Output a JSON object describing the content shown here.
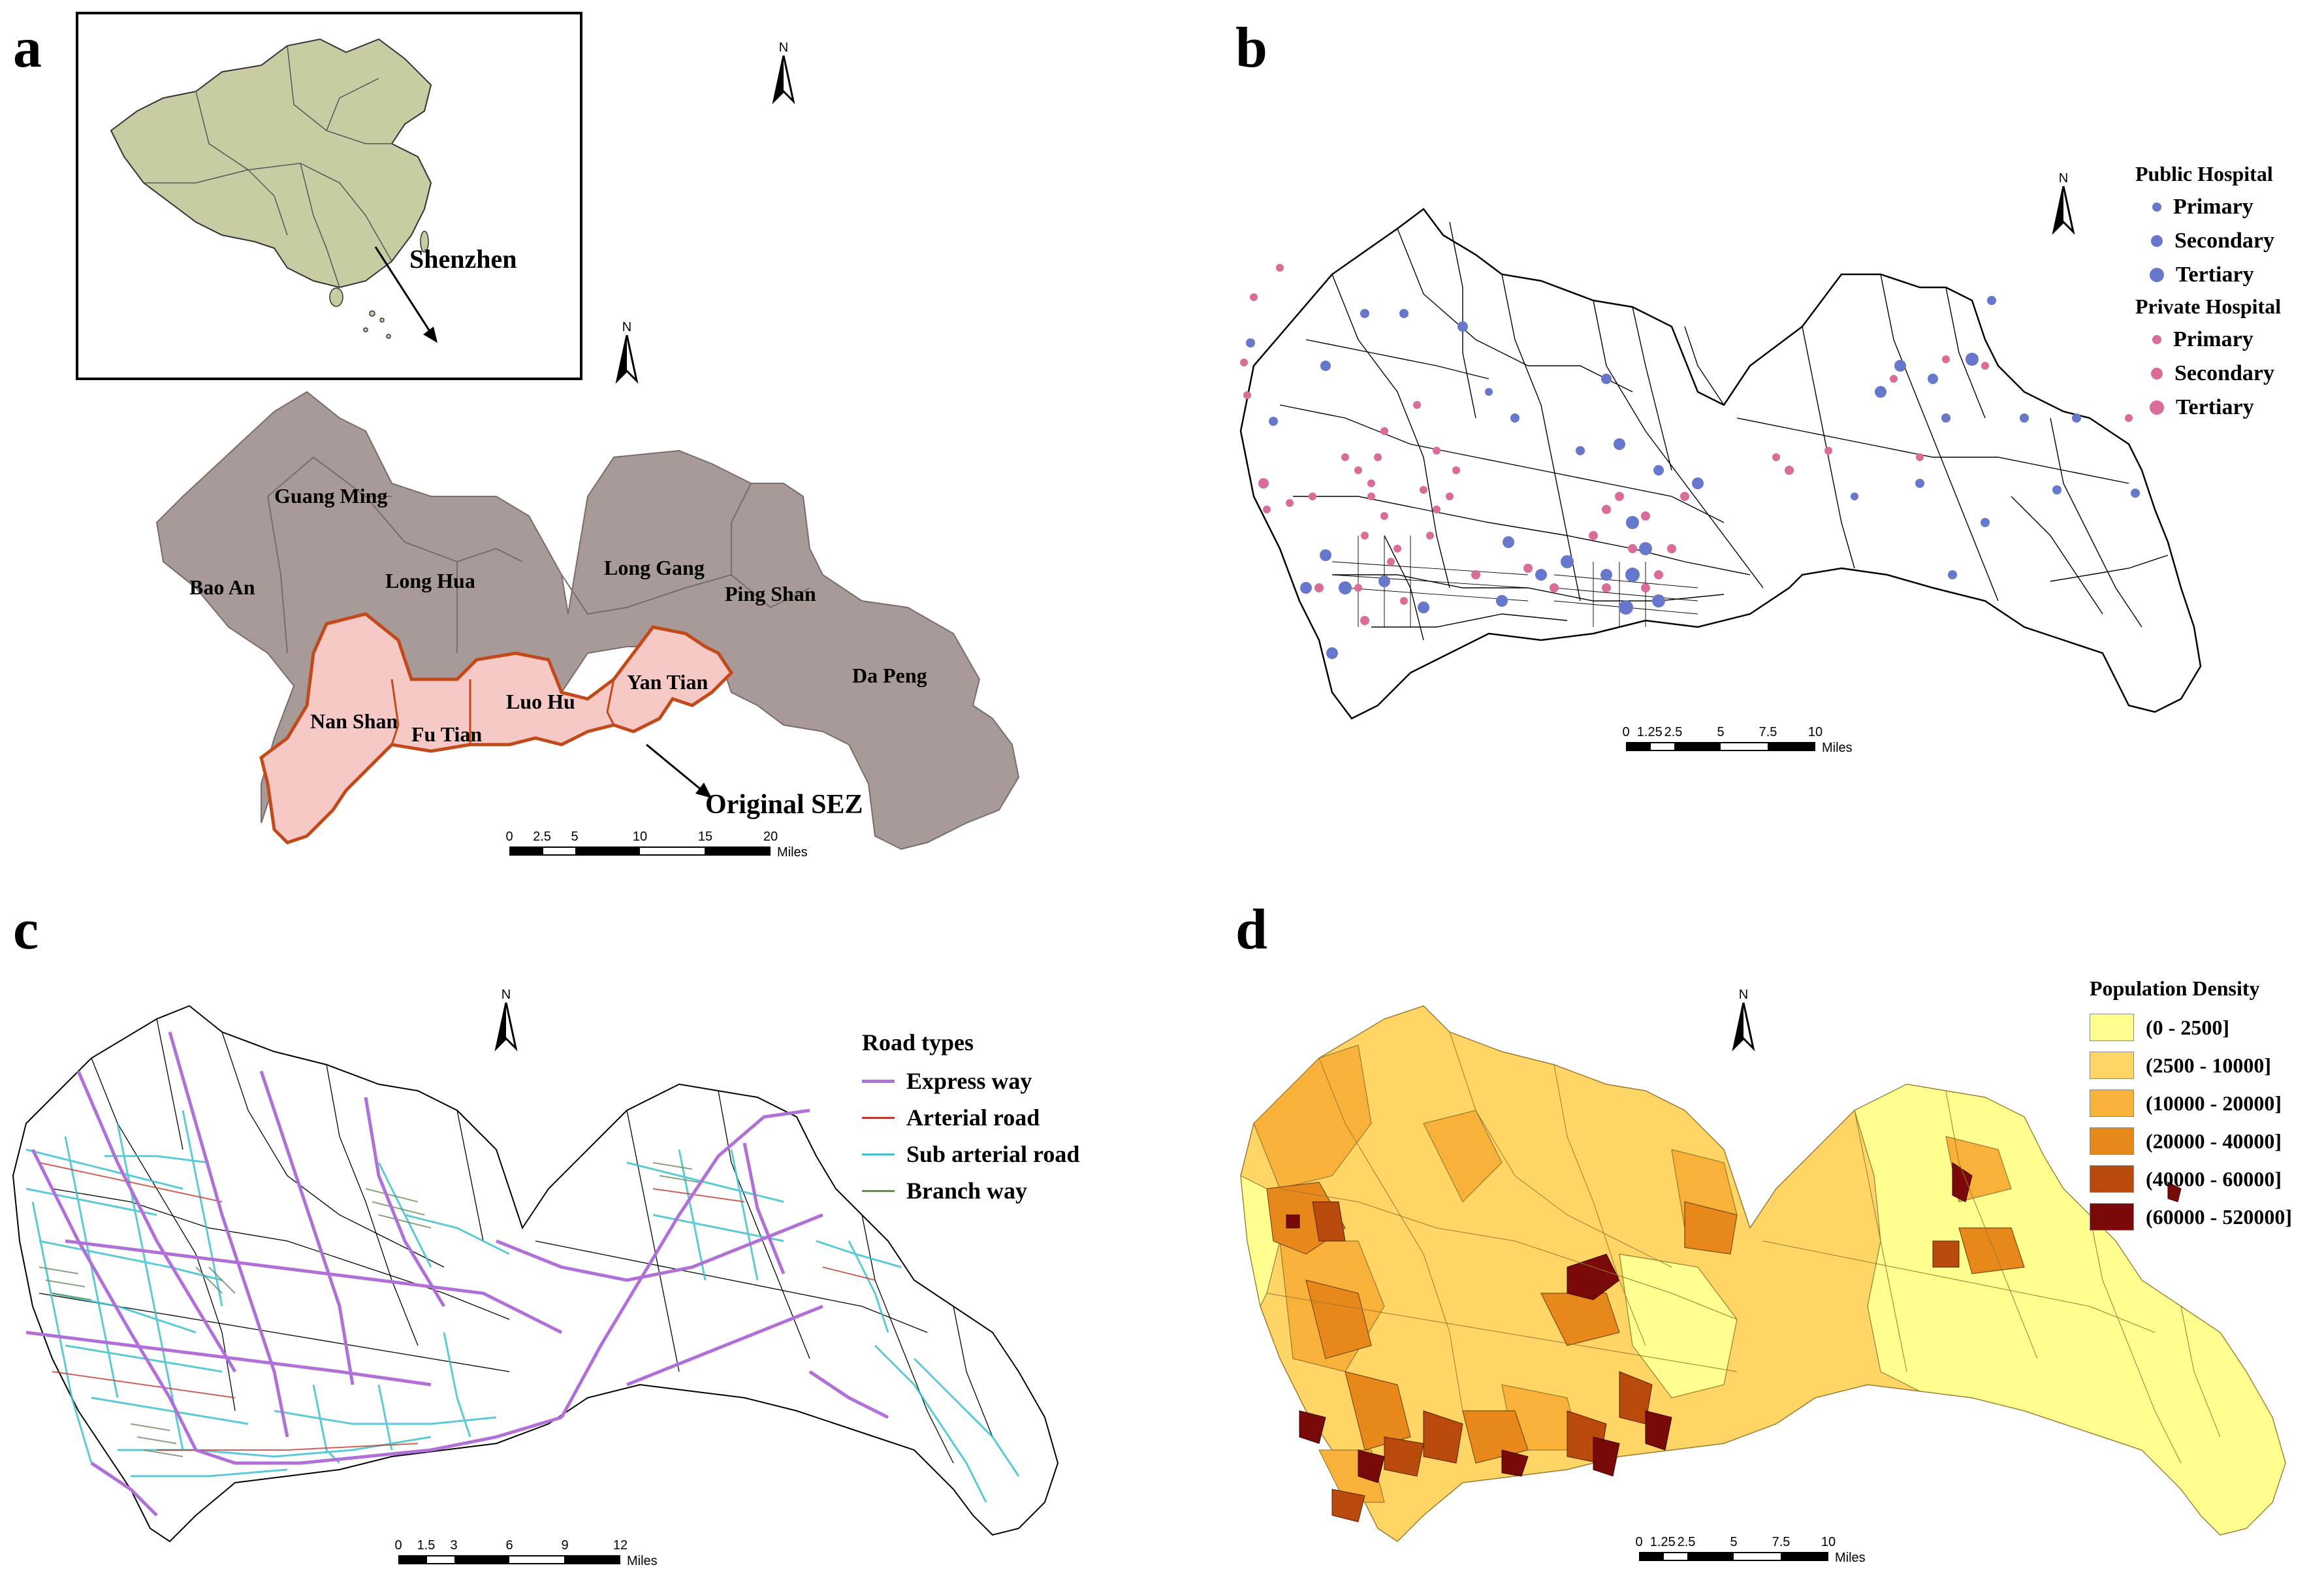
{
  "panels": {
    "a": {
      "letter": "a",
      "inset_label": "Shenzhen",
      "districts": [
        "Guang Ming",
        "Bao An",
        "Long Hua",
        "Long Gang",
        "Ping Shan",
        "Da Peng",
        "Nan Shan",
        "Fu Tian",
        "Luo Hu",
        "Yan Tian"
      ],
      "annotation": "Original SEZ",
      "scale_ticks": [
        "0",
        "2.5",
        "5",
        "10",
        "15",
        "20"
      ],
      "scale_unit": "Miles",
      "north": "N",
      "colors": {
        "outer": "#a89a98",
        "sez": "#f7c9c6",
        "sez_border": "#c24a1a",
        "china": "#c9cba3"
      }
    },
    "b": {
      "letter": "b",
      "legend": {
        "public_title": "Public Hospital",
        "public_items": [
          "Primary",
          "Secondary",
          "Tertiary"
        ],
        "private_title": "Private Hospital",
        "private_items": [
          "Primary",
          "Secondary",
          "Tertiary"
        ],
        "public_color": "#6677cc",
        "private_color": "#d96c98"
      },
      "scale_ticks": [
        "0",
        "1.25",
        "2.5",
        "5",
        "7.5",
        "10"
      ],
      "scale_unit": "Miles",
      "north": "N"
    },
    "c": {
      "letter": "c",
      "legend": {
        "title": "Road types",
        "items": [
          {
            "label": "Express way",
            "color": "#b070d8"
          },
          {
            "label": "Arterial road",
            "color": "#c0392b"
          },
          {
            "label": "Sub arterial road",
            "color": "#40c0d0"
          },
          {
            "label": "Branch way",
            "color": "#6a8a5a"
          }
        ]
      },
      "scale_ticks": [
        "0",
        "1.5",
        "3",
        "6",
        "9",
        "12"
      ],
      "scale_unit": "Miles",
      "north": "N"
    },
    "d": {
      "letter": "d",
      "legend": {
        "title": "Population Density",
        "items": [
          {
            "label": "(0 - 2500]",
            "color": "#ffff90"
          },
          {
            "label": "(2500 - 10000]",
            "color": "#ffd566"
          },
          {
            "label": "(10000 - 20000]",
            "color": "#f8b23a"
          },
          {
            "label": "(20000 - 40000]",
            "color": "#e8881a"
          },
          {
            "label": "(40000 - 60000]",
            "color": "#b84a0c"
          },
          {
            "label": "(60000 - 520000]",
            "color": "#7a0a0a"
          }
        ]
      },
      "scale_ticks": [
        "0",
        "1.25",
        "2.5",
        "5",
        "7.5",
        "10"
      ],
      "scale_unit": "Miles",
      "north": "N"
    }
  }
}
